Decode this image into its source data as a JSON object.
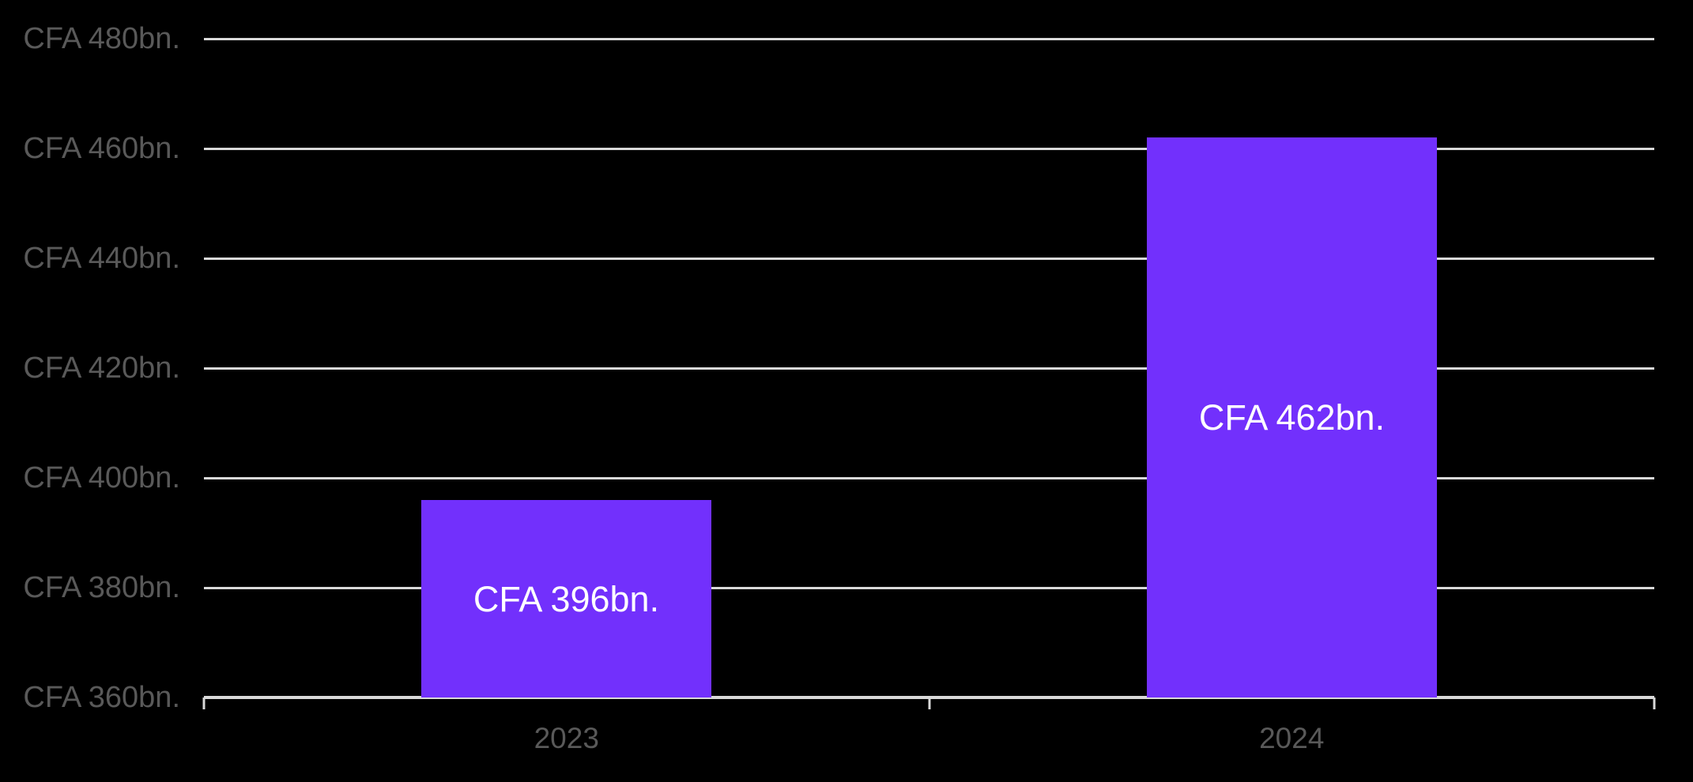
{
  "chart_data": {
    "type": "bar",
    "title": "",
    "xlabel": "",
    "ylabel": "",
    "categories": [
      "2023",
      "2024"
    ],
    "values": [
      396,
      462
    ],
    "data_labels": [
      "CFA 396bn.",
      "CFA 462bn."
    ],
    "data_label_position": "center",
    "y_axis": {
      "min": 360,
      "max": 480,
      "step": 20,
      "tick_labels": [
        "CFA 360bn.",
        "CFA 380bn.",
        "CFA 400bn.",
        "CFA 420bn.",
        "CFA 440bn.",
        "CFA 460bn.",
        "CFA 480bn."
      ]
    },
    "legend": "none",
    "grid": true,
    "colors": {
      "background": "#000000",
      "bar": "#7230FC",
      "bar_label_text": "#FFFFFF",
      "axis_text": "#595959",
      "gridline": "#D9D9D9",
      "axis_line": "#D9D9D9"
    }
  }
}
